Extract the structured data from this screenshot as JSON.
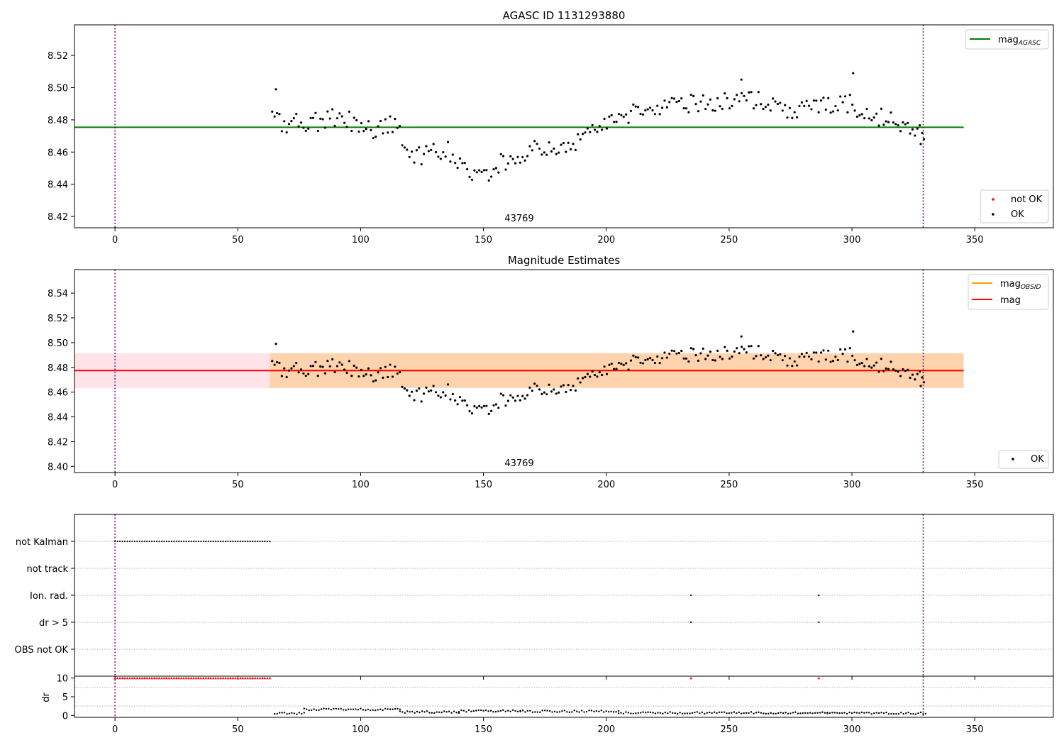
{
  "chart_data": [
    {
      "type": "scatter",
      "title": "AGASC ID 1131293880",
      "xlim": [
        -16.5,
        382
      ],
      "ylim": [
        8.413,
        8.539
      ],
      "xticks": [
        0,
        50,
        100,
        150,
        200,
        250,
        300,
        350
      ],
      "yticks": [
        8.42,
        8.44,
        8.46,
        8.48,
        8.5,
        8.52
      ],
      "ytick_labels": [
        "8.42",
        "8.44",
        "8.46",
        "8.48",
        "8.50",
        "8.52"
      ],
      "annotation": "43769",
      "vlines": [
        0,
        329
      ],
      "hline": {
        "name": "mag",
        "sub": "AGASC",
        "value": 8.4754,
        "x_range": [
          -16.5,
          345.5
        ],
        "color": "#008000"
      },
      "scatter_legend": [
        {
          "name": "not OK",
          "color": "#ff0000"
        },
        {
          "name": "OK",
          "color": "#000000"
        }
      ]
    },
    {
      "type": "scatter",
      "title": "Magnitude Estimates",
      "xlim": [
        -16.5,
        382
      ],
      "ylim": [
        8.395,
        8.559
      ],
      "xticks": [
        0,
        50,
        100,
        150,
        200,
        250,
        300,
        350
      ],
      "yticks": [
        8.4,
        8.42,
        8.44,
        8.46,
        8.48,
        8.5,
        8.52,
        8.54
      ],
      "ytick_labels": [
        "8.40",
        "8.42",
        "8.44",
        "8.46",
        "8.48",
        "8.50",
        "8.52",
        "8.54"
      ],
      "annotation": "43769",
      "vlines": [
        0,
        329
      ],
      "bands": [
        {
          "x_range": [
            -16.5,
            345.5
          ],
          "y_range": [
            8.4634,
            8.4914
          ],
          "color": "#ffc0cb",
          "opacity": 0.45
        },
        {
          "x_range": [
            63,
            345.5
          ],
          "y_range": [
            8.4634,
            8.4914
          ],
          "color": "#ffa500",
          "opacity": 0.25
        }
      ],
      "lines": [
        {
          "name": "mag",
          "sub": "OBSID",
          "value": 8.4774,
          "x_range": [
            63,
            345.5
          ],
          "color": "#ffa500"
        },
        {
          "name": "mag",
          "sub": "",
          "value": 8.4774,
          "x_range": [
            -16.5,
            345.5
          ],
          "color": "#ff0000"
        }
      ],
      "line_legend": [
        {
          "name": "mag",
          "sub": "OBSID",
          "color": "#ffa500"
        },
        {
          "name": "mag",
          "sub": "",
          "color": "#ff0000"
        }
      ],
      "scatter_legend": [
        {
          "name": "OK",
          "color": "#000000"
        }
      ]
    },
    {
      "type": "scatter",
      "title": "",
      "xlim": [
        -16.5,
        382
      ],
      "categories": [
        "not Kalman",
        "not track",
        "Ion. rad.",
        "dr > 5",
        "OBS not OK"
      ],
      "xticks": [
        0,
        50,
        100,
        150,
        200,
        250,
        300,
        350
      ],
      "vlines": [
        0,
        329
      ],
      "flags": {
        "not Kalman": {
          "x_range": [
            0,
            63
          ]
        },
        "Ion. rad.": {
          "x": [
            234.5,
            286.5
          ]
        },
        "dr > 5": {
          "x": [
            234.5,
            286.5
          ]
        }
      }
    },
    {
      "type": "scatter",
      "title": "",
      "ylabel": "dr",
      "xlim": [
        -16.5,
        382
      ],
      "ylim": [
        -0.5,
        10.5
      ],
      "xticks": [
        0,
        50,
        100,
        150,
        200,
        250,
        300,
        350
      ],
      "yticks": [
        0,
        5,
        10
      ],
      "ytick_labels": [
        "0",
        "5",
        "10"
      ],
      "vlines": [
        0,
        329
      ],
      "clipped": {
        "x_range": [
          0,
          63
        ],
        "extra_x": [
          234.5,
          286.5
        ],
        "value": 10,
        "color": "#ff0000"
      },
      "segments": [
        {
          "x": [
            65,
            77
          ],
          "y": 0.55
        },
        {
          "x": [
            77,
            116
          ],
          "y": 1.6
        },
        {
          "x": [
            116,
            140
          ],
          "y": 0.9
        },
        {
          "x": [
            140,
            165
          ],
          "y": 1.2
        },
        {
          "x": [
            165,
            205
          ],
          "y": 1.1
        },
        {
          "x": [
            205,
            290
          ],
          "y": 0.7
        },
        {
          "x": [
            290,
            330
          ],
          "y": 0.6
        }
      ]
    }
  ]
}
